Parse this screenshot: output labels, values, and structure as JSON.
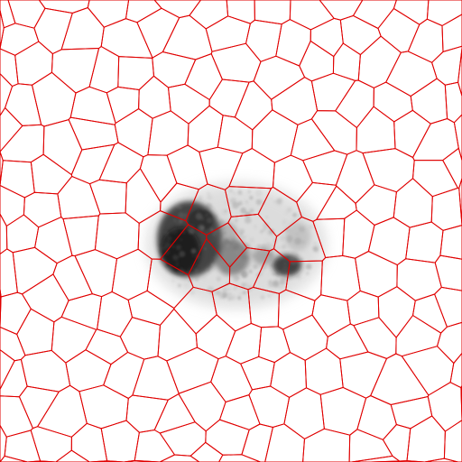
{
  "image": {
    "content": "superpixel-segmentation-overlay",
    "background_color": "#ffffff",
    "boundary_color": "#e00000",
    "scan_tone_dark": "#1c1c1c",
    "scan_tone_light": "#f2f2f2"
  }
}
